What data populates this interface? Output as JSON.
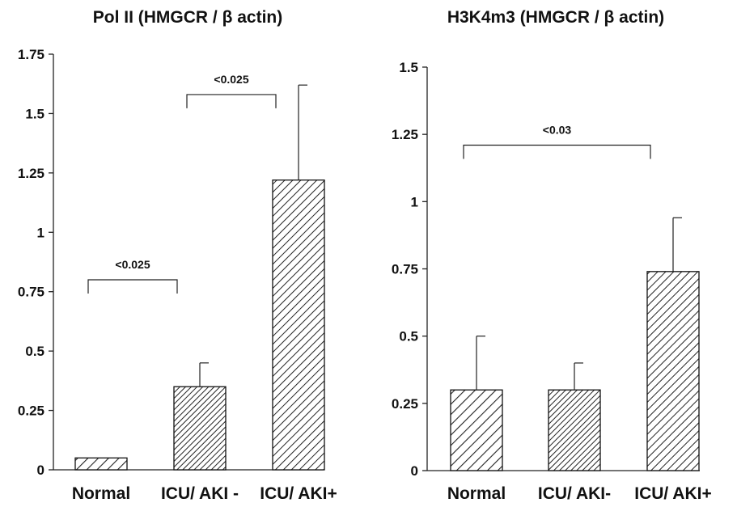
{
  "chart_data": [
    {
      "type": "bar",
      "title": "Pol II (HMGCR / β actin)",
      "categories": [
        "Normal",
        "ICU/ AKI -",
        "ICU/ AKI+"
      ],
      "values": [
        0.05,
        0.35,
        1.22
      ],
      "error": [
        0.0,
        0.1,
        0.4
      ],
      "patterns": [
        "sparse",
        "dense",
        "medium"
      ],
      "ylim": [
        0,
        1.75
      ],
      "yticks": [
        "0",
        "0.25",
        "0.5",
        "0.75",
        "1",
        "1.25",
        "1.5",
        "1.75"
      ],
      "xlabel": "",
      "ylabel": "",
      "grid": false,
      "annotations": [
        {
          "label": "<0.025",
          "from": 0,
          "to": 1,
          "y": 0.8
        },
        {
          "label": "<0.025",
          "from": 1,
          "to": 2,
          "y": 1.58
        }
      ]
    },
    {
      "type": "bar",
      "title": "H3K4m3 (HMGCR / β actin)",
      "categories": [
        "Normal",
        "ICU/ AKI-",
        "ICU/ AKI+"
      ],
      "values": [
        0.3,
        0.3,
        0.74
      ],
      "error": [
        0.2,
        0.1,
        0.2
      ],
      "patterns": [
        "sparse",
        "dense",
        "medium"
      ],
      "ylim": [
        0,
        1.5
      ],
      "yticks": [
        "0",
        "0.25",
        "0.5",
        "0.75",
        "1",
        "1.25",
        "1.5"
      ],
      "xlabel": "",
      "ylabel": "",
      "grid": false,
      "annotations": [
        {
          "label": "<0.03",
          "from": 0,
          "to": 2,
          "y": 1.21
        }
      ]
    }
  ]
}
